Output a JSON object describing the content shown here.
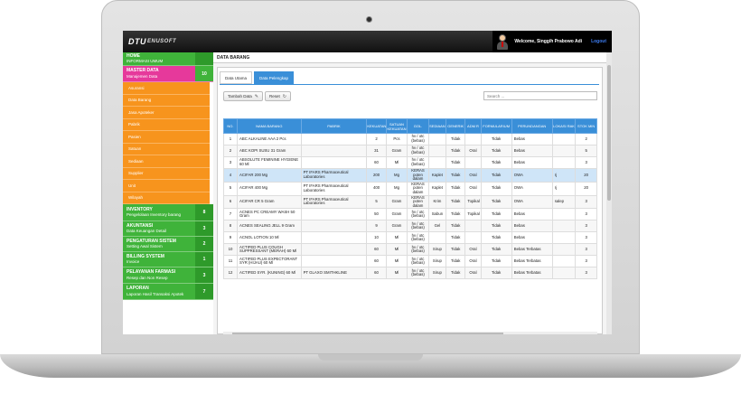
{
  "topbar": {
    "logo_mark": "DTU",
    "logo_text": "ENUSOFT",
    "welcome": "Welcome, Singgih Prabowo Adi",
    "logout": "Logout"
  },
  "sidebar": {
    "menu": [
      {
        "title": "HOME",
        "subtitle": "INFORMASI UMUM",
        "badge": "",
        "color": "#3fb33a",
        "badge_color": "#2e9a2a"
      },
      {
        "title": "MASTER DATA",
        "subtitle": "Manajemen Data",
        "badge": "10",
        "color": "#e6399b",
        "badge_color": "#3fb33a"
      },
      {
        "title": "INVENTORY",
        "subtitle": "Pengelolaan Inventory barang",
        "badge": "8",
        "color": "#3fb33a",
        "badge_color": "#2e9a2a"
      },
      {
        "title": "AKUNTANSI",
        "subtitle": "Data Keuangan Detail",
        "badge": "3",
        "color": "#3fb33a",
        "badge_color": "#2e9a2a"
      },
      {
        "title": "PENGATURAN SISTEM",
        "subtitle": "Setting Awal Sistem",
        "badge": "2",
        "color": "#3fb33a",
        "badge_color": "#2e9a2a"
      },
      {
        "title": "BILLING SYSTEM",
        "subtitle": "Invoice",
        "badge": "1",
        "color": "#3fb33a",
        "badge_color": "#2e9a2a"
      },
      {
        "title": "PELAYANAN FARMASI",
        "subtitle": "Resep dan Non Resep",
        "badge": "3",
        "color": "#3fb33a",
        "badge_color": "#2e9a2a"
      },
      {
        "title": "LAPORAN",
        "subtitle": "Laporan Hasil Transaksi Apotek",
        "badge": "7",
        "color": "#3fb33a",
        "badge_color": "#2e9a2a"
      }
    ],
    "submenu": [
      "Asuransi",
      "Data Barang",
      "Jasa Apoteker",
      "Pabrik",
      "Pasien",
      "Satuan",
      "Sediaan",
      "Supplier",
      "Unit",
      "Wilayah"
    ]
  },
  "content": {
    "breadcrumb": "DATA BARANG",
    "tabs": [
      "Data Utama",
      "Data Pelengkap"
    ],
    "btn_add": "Tambah Data",
    "btn_reset": "Reset",
    "search_placeholder": "Search ...",
    "columns": [
      "NO.",
      "NAMA BARANG",
      "PABRIK",
      "KEKUATAN",
      "SATUAN KEKUATAN",
      "GOL.",
      "SEDIAAN",
      "GENERIK",
      "ADM R",
      "FORMULARIUM",
      "PERUNDANGAN",
      "LOKASI RAK",
      "STOK MIN"
    ],
    "rows": [
      [
        "1",
        "ABC ALKALINE AAA 2 Pcs",
        "",
        "2",
        "Pcs",
        "hv / otc (bebas)",
        "",
        "Tidak",
        "",
        "Tidak",
        "Bebas",
        "",
        "2"
      ],
      [
        "2",
        "ABC KOPI SUSU 31 Gram",
        "",
        "31",
        "Gram",
        "hv / otc (bebas)",
        "",
        "Tidak",
        "Oral",
        "Tidak",
        "Bebas",
        "",
        "5"
      ],
      [
        "3",
        "ABSOLUTE FEMININE HYGIENE 60 Ml",
        "",
        "60",
        "Ml",
        "hv / otc (bebas)",
        "",
        "Tidak",
        "",
        "Tidak",
        "Bebas",
        "",
        "3"
      ],
      [
        "4",
        "ACIFAR 200 Mg",
        "PT IFARS Pharmaceutical Laboratories",
        "200",
        "Mg",
        "KERAS poten dalam",
        "Kaplet",
        "Tidak",
        "Oral",
        "Tidak",
        "OWA",
        "rj",
        "20"
      ],
      [
        "5",
        "ACIFAR 400 Mg",
        "PT IFARS Pharmaceutical Laboratories",
        "400",
        "Mg",
        "KERAS poten dalam",
        "Kaplet",
        "Tidak",
        "Oral",
        "Tidak",
        "OWA",
        "rj",
        "20"
      ],
      [
        "6",
        "ACIFAR CR 5 Gram",
        "PT IFARS Pharmaceutical Laboratories",
        "5",
        "Gram",
        "KERAS poten dalam",
        "Krim",
        "Tidak",
        "Topikal",
        "Tidak",
        "OWA",
        "salep",
        "3"
      ],
      [
        "7",
        "ACNES PC CREAMY WASH 50 Gram",
        "",
        "50",
        "Gram",
        "hv / otc (bebas)",
        "Sabun",
        "Tidak",
        "Topikal",
        "Tidak",
        "Bebas",
        "",
        "3"
      ],
      [
        "8",
        "ACNES SEALING JELL 9 Gram",
        "",
        "9",
        "Gram",
        "hv / otc (bebas)",
        "Gel",
        "Tidak",
        "",
        "Tidak",
        "Bebas",
        "",
        "3"
      ],
      [
        "9",
        "ACNOL LOTION 10 Ml",
        "",
        "10",
        "Ml",
        "hv / otc (bebas)",
        "",
        "Tidak",
        "",
        "Tidak",
        "Bebas",
        "",
        "3"
      ],
      [
        "10",
        "ACTIFED PLUS COUGH SUPPRESSANT (MERAH) 60 Ml",
        "",
        "60",
        "Ml",
        "hv / otc (bebas)",
        "Sirup",
        "Tidak",
        "Oral",
        "Tidak",
        "Bebas Terbatas",
        "",
        "3"
      ],
      [
        "11",
        "ACTIFED PLUS EXPECTORANT SYR (HIJAU) 60 Ml",
        "",
        "60",
        "Ml",
        "hv / otc (bebas)",
        "Sirup",
        "Tidak",
        "Oral",
        "Tidak",
        "Bebas Terbatas",
        "",
        "3"
      ],
      [
        "12",
        "ACTIFED SYR. (KUNING) 60 Ml",
        "PT GLAXO SMITHKLINE",
        "60",
        "Ml",
        "hv / otc (bebas)",
        "Sirup",
        "Tidak",
        "Oral",
        "Tidak",
        "Bebas Terbatas",
        "",
        "3"
      ]
    ]
  }
}
